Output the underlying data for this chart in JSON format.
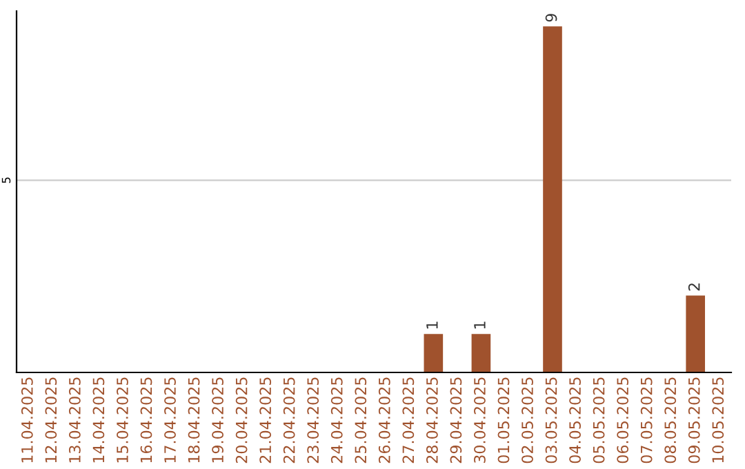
{
  "chart_data": {
    "type": "bar",
    "categories": [
      "11.04.2025",
      "12.04.2025",
      "13.04.2025",
      "14.04.2025",
      "15.04.2025",
      "16.04.2025",
      "17.04.2025",
      "18.04.2025",
      "19.04.2025",
      "20.04.2025",
      "21.04.2025",
      "22.04.2025",
      "23.04.2025",
      "24.04.2025",
      "25.04.2025",
      "26.04.2025",
      "27.04.2025",
      "28.04.2025",
      "29.04.2025",
      "30.04.2025",
      "01.05.2025",
      "02.05.2025",
      "03.05.2025",
      "04.05.2025",
      "05.05.2025",
      "06.05.2025",
      "07.05.2025",
      "08.05.2025",
      "09.05.2025",
      "10.05.2025"
    ],
    "values": [
      null,
      null,
      null,
      null,
      null,
      null,
      null,
      null,
      null,
      null,
      null,
      null,
      null,
      null,
      null,
      null,
      null,
      1,
      null,
      1,
      null,
      null,
      9,
      null,
      null,
      null,
      null,
      null,
      2,
      null
    ],
    "color": "#a0522d",
    "ylim": [
      0,
      9.4
    ],
    "yticks": [
      5
    ],
    "grid": "y",
    "data_labels": true
  }
}
